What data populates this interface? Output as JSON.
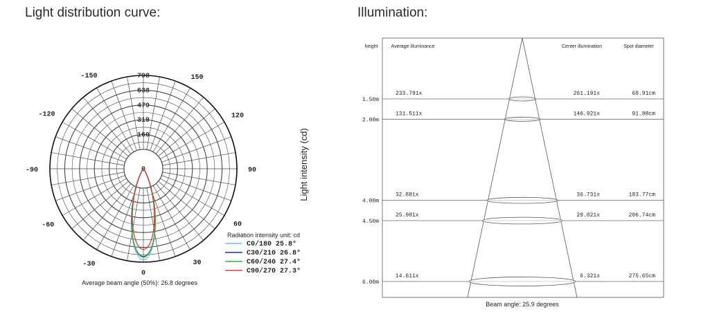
{
  "chart_data": [
    {
      "type": "polar",
      "title": "Light distribution curve:",
      "radial_label": "Light intensity (cd)",
      "radial_ticks": [
        "0",
        "160",
        "319",
        "479",
        "638",
        "798"
      ],
      "radial_max": 798,
      "angle_labels": [
        "0",
        "30",
        "60",
        "90",
        "120",
        "150",
        "-150",
        "-120",
        "-90",
        "-60",
        "-30"
      ],
      "unit_note": "Radiation intensity unit: cd",
      "series": [
        {
          "name": "C0/180 25.8°",
          "color": "#6ec6e8",
          "half_width_deg": 12.9,
          "peak": 790
        },
        {
          "name": "C30/210 26.8°",
          "color": "#1f2f8f",
          "half_width_deg": 13.4,
          "peak": 765
        },
        {
          "name": "C60/240 27.4°",
          "color": "#3aa83a",
          "half_width_deg": 13.7,
          "peak": 760
        },
        {
          "name": "C90/270 27.3°",
          "color": "#d63a3a",
          "half_width_deg": 13.65,
          "peak": 700
        }
      ],
      "footnote": "Average beam angle (50%): 26.8 degrees"
    },
    {
      "type": "table",
      "title": "Illumination:",
      "columns": [
        "height",
        "Average illuminance",
        "Center illumination",
        "Spot diameter"
      ],
      "rows": [
        {
          "height": "1.50m",
          "height_m": 1.5,
          "avg": "233.791x",
          "center": "261.191x",
          "spot": "68.91cm",
          "spot_cm": 68.91
        },
        {
          "height": "2.00m",
          "height_m": 2.0,
          "avg": "131.511x",
          "center": "146.921x",
          "spot": "91.88cm",
          "spot_cm": 91.88
        },
        {
          "height": "4.00m",
          "height_m": 4.0,
          "avg": "32.881x",
          "center": "36.731x",
          "spot": "183.77cm",
          "spot_cm": 183.77
        },
        {
          "height": "4.50m",
          "height_m": 4.5,
          "avg": "25.981x",
          "center": "29.021x",
          "spot": "206.74cm",
          "spot_cm": 206.74
        },
        {
          "height": "6.00m",
          "height_m": 6.0,
          "avg": "14.611x",
          "center": "6.321x",
          "spot": "275.65cm",
          "spot_cm": 275.65
        }
      ],
      "footnote": "Beam angle: 25.9 degrees"
    }
  ]
}
